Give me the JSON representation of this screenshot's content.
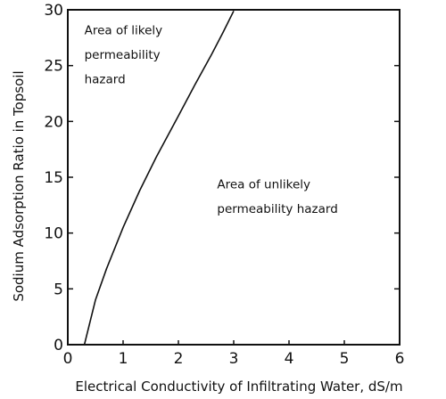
{
  "chart_data": {
    "type": "line",
    "title": "",
    "xlabel": "Electrical Conductivity of Infiltrating Water, dS/m",
    "ylabel": "Sodium Adsorption Ratio in Topsoil",
    "xlim": [
      0,
      6
    ],
    "ylim": [
      0,
      30
    ],
    "xticks": [
      "0",
      "1",
      "2",
      "3",
      "4",
      "5",
      "6"
    ],
    "yticks": [
      "0",
      "5",
      "10",
      "15",
      "20",
      "25",
      "30"
    ],
    "grid": false,
    "series": [
      {
        "x": [
          0.3,
          0.4,
          0.5,
          0.7,
          1.0,
          1.3,
          1.6,
          2.0,
          2.3,
          2.6,
          2.8,
          3.0
        ],
        "y": [
          0,
          2,
          4,
          6.8,
          10.5,
          13.8,
          16.8,
          20.5,
          23.3,
          26.0,
          27.9,
          29.9
        ]
      }
    ],
    "annotations": [
      {
        "name": "likely",
        "lines": [
          "Area of likely",
          "permeability",
          "hazard"
        ],
        "x": 0.3,
        "y": [
          27.8,
          25.6,
          23.4
        ]
      },
      {
        "name": "unlikely",
        "lines": [
          "Area of unlikely",
          "permeability hazard"
        ],
        "x": 2.7,
        "y": [
          14.0,
          11.8
        ]
      }
    ]
  }
}
